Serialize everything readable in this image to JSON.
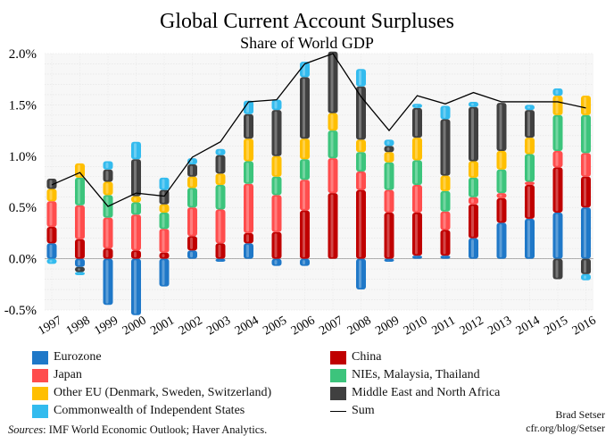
{
  "chart_data": {
    "type": "bar",
    "stacked": true,
    "title": "Global Current Account Surpluses",
    "subtitle": "Share of World GDP",
    "categories": [
      "1997",
      "1998",
      "1999",
      "2000",
      "2001",
      "2002",
      "2003",
      "2004",
      "2005",
      "2006",
      "2007",
      "2008",
      "2009",
      "2010",
      "2011",
      "2012",
      "2013",
      "2014",
      "2015",
      "2016"
    ],
    "ylim": [
      -0.5,
      2.0
    ],
    "yticks": [
      "-0.5%",
      "0.0%",
      "0.5%",
      "1.0%",
      "1.5%",
      "2.0%"
    ],
    "ytick_values": [
      -0.5,
      0.0,
      0.5,
      1.0,
      1.5,
      2.0
    ],
    "grid": true,
    "series": [
      {
        "name": "Eurozone",
        "color": "#1f78c8",
        "values": [
          0.15,
          -0.08,
          -0.45,
          -0.55,
          -0.27,
          0.08,
          -0.03,
          0.15,
          -0.07,
          -0.07,
          0.0,
          -0.3,
          -0.03,
          0.03,
          0.03,
          0.2,
          0.35,
          0.39,
          0.45,
          0.5
        ]
      },
      {
        "name": "China",
        "color": "#c00000",
        "values": [
          0.16,
          0.19,
          0.1,
          0.08,
          0.06,
          0.14,
          0.15,
          0.1,
          0.26,
          0.47,
          0.64,
          0.67,
          0.45,
          0.42,
          0.25,
          0.33,
          0.24,
          0.33,
          0.44,
          0.3
        ]
      },
      {
        "name": "Japan",
        "color": "#ff4d4d",
        "values": [
          0.25,
          0.33,
          0.3,
          0.35,
          0.23,
          0.28,
          0.33,
          0.48,
          0.36,
          0.3,
          0.34,
          0.18,
          0.22,
          0.27,
          0.18,
          0.07,
          0.05,
          0.03,
          0.16,
          0.23
        ]
      },
      {
        "name": "NIEs, Malaysia, Thailand",
        "color": "#3cc47c",
        "values": [
          0.0,
          0.27,
          0.22,
          0.12,
          0.16,
          0.19,
          0.24,
          0.22,
          0.18,
          0.2,
          0.27,
          0.19,
          0.27,
          0.24,
          0.2,
          0.19,
          0.23,
          0.27,
          0.35,
          0.37
        ]
      },
      {
        "name": "Other EU (Denmark, Sweden, Switzerland)",
        "color": "#ffbf00",
        "values": [
          0.12,
          0.14,
          0.13,
          0.06,
          0.08,
          0.11,
          0.11,
          0.22,
          0.2,
          0.2,
          0.17,
          0.12,
          0.1,
          0.22,
          0.15,
          0.16,
          0.18,
          0.16,
          0.19,
          0.19
        ]
      },
      {
        "name": "Middle East and North Africa",
        "color": "#404040",
        "values": [
          0.1,
          -0.05,
          0.12,
          0.36,
          0.14,
          0.12,
          0.18,
          0.24,
          0.45,
          0.6,
          0.6,
          0.52,
          0.06,
          0.29,
          0.55,
          0.53,
          0.47,
          0.27,
          -0.2,
          -0.15
        ]
      },
      {
        "name": "Commonwealth of Independent States",
        "color": "#33bbee",
        "values": [
          -0.05,
          -0.03,
          0.08,
          0.17,
          0.12,
          0.06,
          0.06,
          0.13,
          0.1,
          0.15,
          0.0,
          0.17,
          0.06,
          0.04,
          0.13,
          0.05,
          0.0,
          0.05,
          0.07,
          -0.06
        ]
      }
    ],
    "sum": {
      "name": "Sum",
      "color": "#000000",
      "values": [
        0.72,
        0.84,
        0.51,
        0.64,
        0.61,
        0.99,
        1.14,
        1.53,
        1.55,
        1.9,
        2.0,
        1.58,
        1.25,
        1.59,
        1.51,
        1.62,
        1.53,
        1.53,
        1.53,
        1.47
      ]
    },
    "legend": {
      "left": [
        "Eurozone",
        "Japan",
        "Other EU (Denmark, Sweden, Switzerland)",
        "Commonwealth of Independent States"
      ],
      "right": [
        "China",
        "NIEs, Malaysia, Thailand",
        "Middle East and North Africa",
        "Sum"
      ]
    }
  },
  "footer": {
    "sources_label": "Sources",
    "sources_text": ": IMF World Economic Outlook; Haver Analytics.",
    "author": "Brad Setser",
    "site": "cfr.org/blog/Setser"
  }
}
